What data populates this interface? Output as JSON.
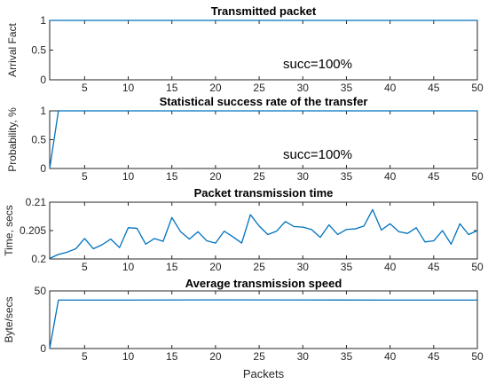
{
  "colors": {
    "series": "#0072BD",
    "axis": "#262626"
  },
  "xlabel": "Packets",
  "chart_data": [
    {
      "type": "line",
      "title": "Transmitted packet",
      "xlabel": "",
      "ylabel": "Arrival Fact",
      "xlim": [
        1,
        50
      ],
      "ylim": [
        0,
        1
      ],
      "xticks": [
        5,
        10,
        15,
        20,
        25,
        30,
        35,
        40,
        45,
        50
      ],
      "yticks": [
        0,
        0.5,
        1
      ],
      "ytick_labels": [
        "0",
        "0.5",
        "1"
      ],
      "annotation": "succ=100%",
      "series": [
        {
          "x": [
            1,
            50
          ],
          "values": [
            1,
            1
          ]
        }
      ]
    },
    {
      "type": "line",
      "title": "Statistical success rate of the transfer",
      "xlabel": "",
      "ylabel": "Probability, %",
      "xlim": [
        1,
        50
      ],
      "ylim": [
        0,
        1
      ],
      "xticks": [
        5,
        10,
        15,
        20,
        25,
        30,
        35,
        40,
        45,
        50
      ],
      "yticks": [
        0,
        0.5,
        1
      ],
      "ytick_labels": [
        "0",
        "0.5",
        "1"
      ],
      "annotation": "succ=100%",
      "series": [
        {
          "x": [
            1,
            2,
            50
          ],
          "values": [
            0,
            1,
            1
          ]
        }
      ]
    },
    {
      "type": "line",
      "title": "Packet transmission time",
      "xlabel": "",
      "ylabel": "Time, secs",
      "xlim": [
        1,
        50
      ],
      "ylim": [
        0.2,
        0.21
      ],
      "xticks": [
        5,
        10,
        15,
        20,
        25,
        30,
        35,
        40,
        45,
        50
      ],
      "yticks": [
        0.2,
        0.205,
        0.21
      ],
      "ytick_labels": [
        "0.2",
        "0.205",
        "0.21"
      ],
      "annotation": "",
      "series": [
        {
          "x": [
            1,
            2,
            3,
            4,
            5,
            6,
            7,
            8,
            9,
            10,
            11,
            12,
            13,
            14,
            15,
            16,
            17,
            18,
            19,
            20,
            21,
            22,
            23,
            24,
            25,
            26,
            27,
            28,
            29,
            30,
            31,
            32,
            33,
            34,
            35,
            36,
            37,
            38,
            39,
            40,
            41,
            42,
            43,
            44,
            45,
            46,
            47,
            48,
            49,
            50
          ],
          "values": [
            0.2001,
            0.2008,
            0.2012,
            0.2018,
            0.2036,
            0.2018,
            0.2025,
            0.2035,
            0.202,
            0.2055,
            0.2054,
            0.2026,
            0.2036,
            0.2031,
            0.2073,
            0.2048,
            0.2035,
            0.2048,
            0.2032,
            0.2028,
            0.2049,
            0.2039,
            0.2028,
            0.2078,
            0.2058,
            0.2043,
            0.2049,
            0.2066,
            0.2057,
            0.2056,
            0.2052,
            0.2038,
            0.206,
            0.2043,
            0.2052,
            0.2053,
            0.2058,
            0.2087,
            0.2051,
            0.2062,
            0.2048,
            0.2045,
            0.2055,
            0.203,
            0.2032,
            0.205,
            0.2026,
            0.2062,
            0.2043,
            0.205
          ]
        }
      ]
    },
    {
      "type": "line",
      "title": "Average transmission speed",
      "xlabel": "Packets",
      "ylabel": "Byte/secs",
      "xlim": [
        1,
        50
      ],
      "ylim": [
        0,
        50
      ],
      "xticks": [
        5,
        10,
        15,
        20,
        25,
        30,
        35,
        40,
        45,
        50
      ],
      "yticks": [
        0,
        50
      ],
      "ytick_labels": [
        "0",
        "50"
      ],
      "annotation": "",
      "series": [
        {
          "x": [
            1,
            2,
            10,
            20,
            30,
            40,
            50
          ],
          "values": [
            0,
            42,
            42,
            42.2,
            42.1,
            42,
            42
          ]
        }
      ]
    }
  ]
}
